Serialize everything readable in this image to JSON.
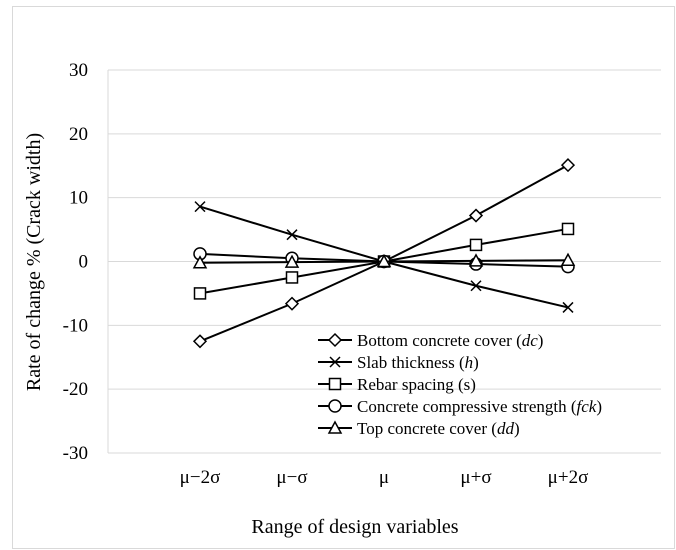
{
  "chart_data": {
    "type": "line",
    "xlabel": "Range of design variables",
    "ylabel": "Rate of change % (Crack width)",
    "categories": [
      "μ−2σ",
      "μ−σ",
      "μ",
      "μ+σ",
      "μ+2σ"
    ],
    "ylim": [
      -30,
      30
    ],
    "yticks": [
      -30,
      -20,
      -10,
      0,
      10,
      20,
      30
    ],
    "ytick_labels": [
      "-30",
      "-20",
      "-10",
      "0",
      "10",
      "20",
      "30"
    ],
    "grid": "horizontal",
    "legend_position": "bottom-right",
    "series": [
      {
        "name": "Bottom concrete cover (dc)",
        "label_main": "Bottom concrete cover (",
        "label_var": "dc",
        "label_end": ")",
        "marker": "diamond",
        "values": [
          -12.5,
          -6.6,
          0,
          7.2,
          15.1
        ]
      },
      {
        "name": "Slab thickness (h)",
        "label_main": "Slab thickness (",
        "label_var": "h",
        "label_end": ")",
        "marker": "x",
        "values": [
          8.6,
          4.2,
          0,
          -3.8,
          -7.2
        ]
      },
      {
        "name": "Rebar spacing (s)",
        "label_main": "Rebar spacing (s)",
        "label_var": "",
        "label_end": "",
        "marker": "square",
        "values": [
          -5.0,
          -2.5,
          0,
          2.6,
          5.1
        ]
      },
      {
        "name": "Concrete compressive strength (fck)",
        "label_main": "Concrete compressive strength (",
        "label_var": "fck",
        "label_end": ")",
        "marker": "circle",
        "values": [
          1.2,
          0.5,
          0,
          -0.4,
          -0.8
        ]
      },
      {
        "name": "Top concrete cover (dd)",
        "label_main": "Top concrete cover (",
        "label_var": "dd",
        "label_end": ")",
        "marker": "triangle",
        "values": [
          -0.2,
          -0.1,
          0,
          0.1,
          0.2
        ]
      }
    ]
  }
}
